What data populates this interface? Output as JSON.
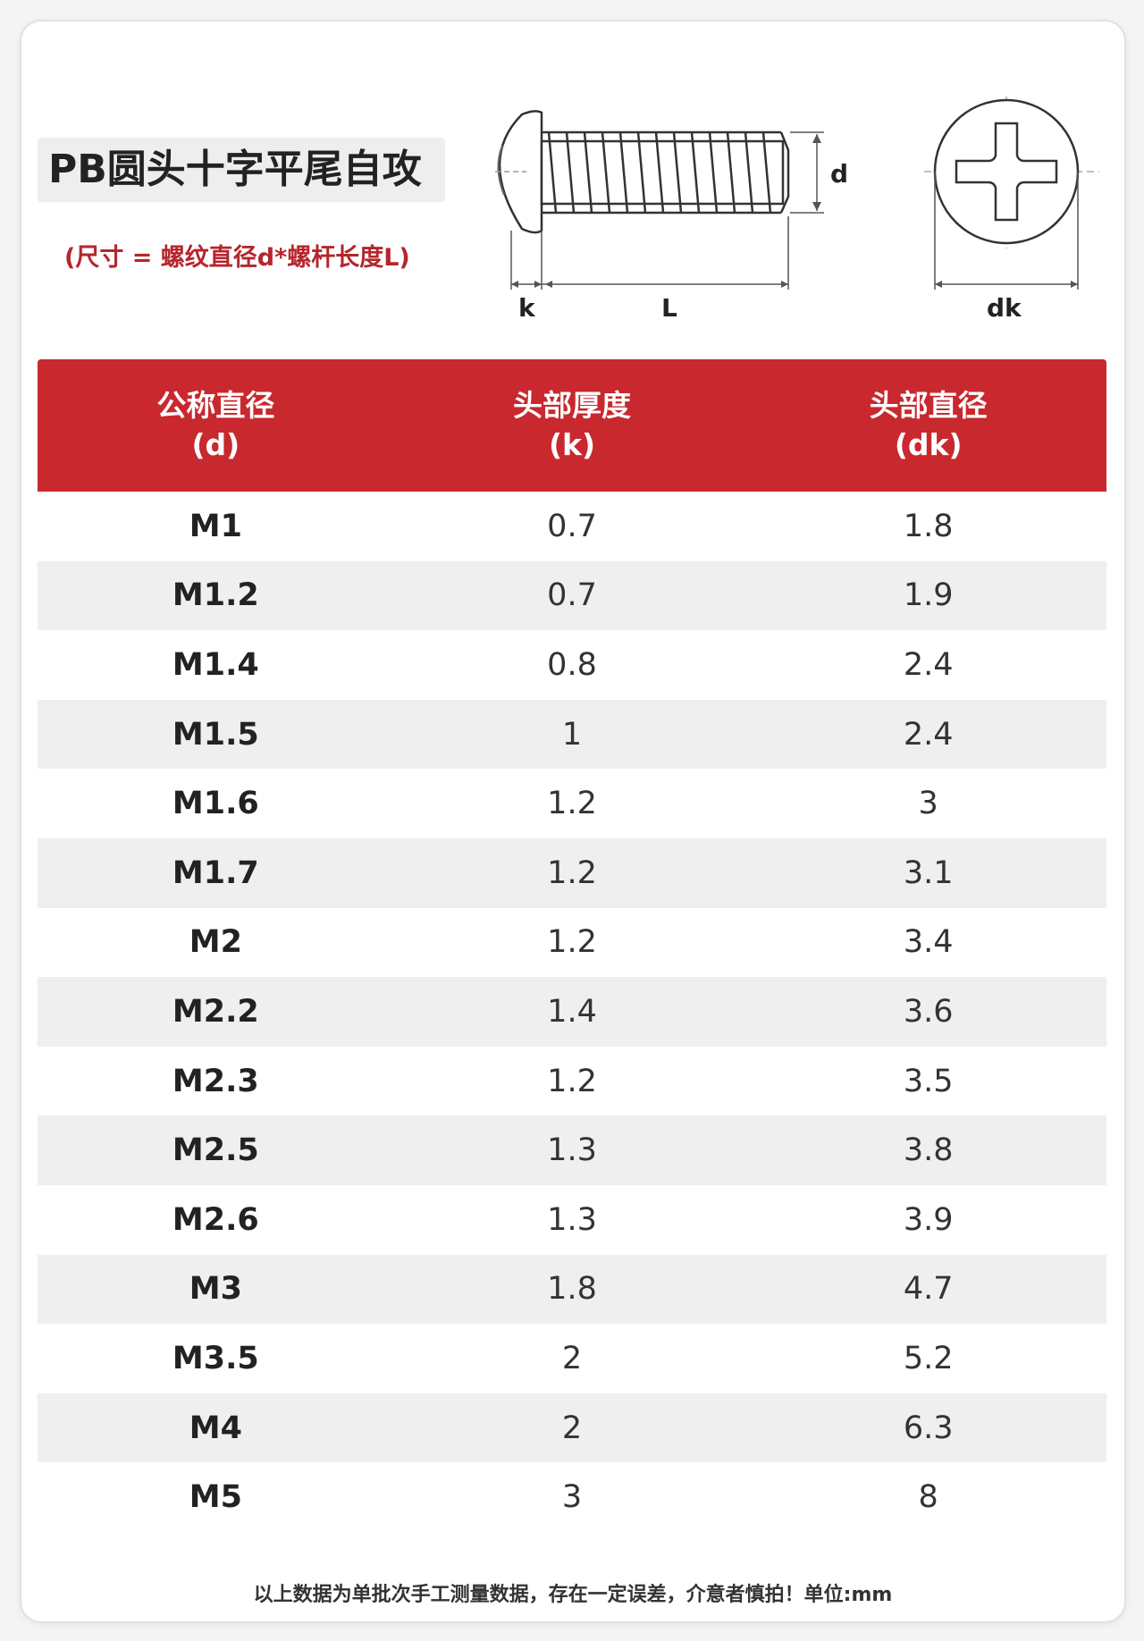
{
  "title": "PB圆头十字平尾自攻",
  "subtitle": "(尺寸 = 螺纹直径d*螺杆长度L)",
  "diagram": {
    "labels": {
      "d": "d",
      "k": "k",
      "L": "L",
      "dk": "dk"
    }
  },
  "table": {
    "headers": [
      {
        "line1": "公称直径",
        "line2": "(d)"
      },
      {
        "line1": "头部厚度",
        "line2": "(k)"
      },
      {
        "line1": "头部直径",
        "line2": "(dk)"
      }
    ],
    "rows": [
      [
        "M1",
        "0.7",
        "1.8"
      ],
      [
        "M1.2",
        "0.7",
        "1.9"
      ],
      [
        "M1.4",
        "0.8",
        "2.4"
      ],
      [
        "M1.5",
        "1",
        "2.4"
      ],
      [
        "M1.6",
        "1.2",
        "3"
      ],
      [
        "M1.7",
        "1.2",
        "3.1"
      ],
      [
        "M2",
        "1.2",
        "3.4"
      ],
      [
        "M2.2",
        "1.4",
        "3.6"
      ],
      [
        "M2.3",
        "1.2",
        "3.5"
      ],
      [
        "M2.5",
        "1.3",
        "3.8"
      ],
      [
        "M2.6",
        "1.3",
        "3.9"
      ],
      [
        "M3",
        "1.8",
        "4.7"
      ],
      [
        "M3.5",
        "2",
        "5.2"
      ],
      [
        "M4",
        "2",
        "6.3"
      ],
      [
        "M5",
        "3",
        "8"
      ]
    ]
  },
  "footnote": "以上数据为单批次手工测量数据，存在一定误差，介意者慎拍！单位:mm",
  "colors": {
    "header_bg": "#c8282e",
    "accent_text": "#b5262c",
    "alt_row": "#efefef"
  }
}
